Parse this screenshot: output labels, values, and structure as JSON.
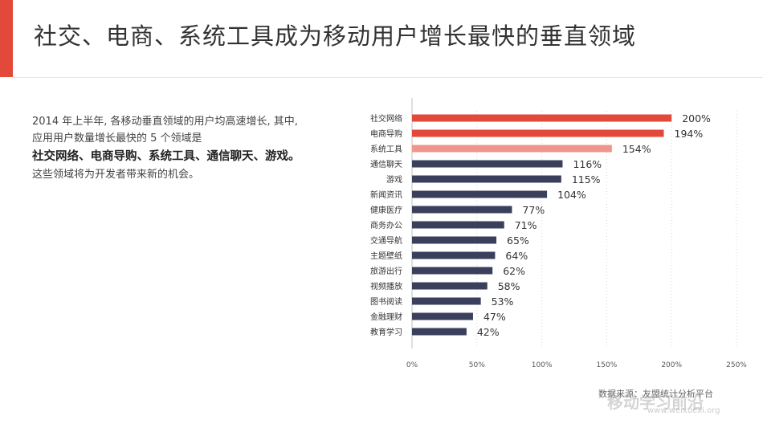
{
  "header": {
    "title": "社交、电商、系统工具成为移动用户增长最快的垂直领域"
  },
  "description": {
    "line1": "2014 年上半年, 各移动垂直领域的用户均高速增长, 其中,",
    "line2": "应用用户数量增长最快的 5 个领域是",
    "line3_bold": "社交网络、电商导购、系统工具、通信聊天、游戏。",
    "line4": "这些领域将为开发者带来新的机会。"
  },
  "footer": {
    "source": "数据来源：友盟统计分析平台",
    "watermark": "移动学习前沿",
    "watermark_url": "www.weixuexi.org"
  },
  "colors": {
    "accent": "#e2493b",
    "bar_dark": "#3a3f5c",
    "bar_red": "#e2493b",
    "bar_pink": "#f0958b"
  },
  "chart_data": {
    "type": "bar",
    "orientation": "horizontal",
    "categories": [
      "社交网络",
      "电商导购",
      "系统工具",
      "通信聊天",
      "游戏",
      "新闻资讯",
      "健康医疗",
      "商务办公",
      "交通导航",
      "主题壁纸",
      "旅游出行",
      "视频播放",
      "图书阅读",
      "金融理财",
      "教育学习"
    ],
    "values": [
      200,
      194,
      154,
      116,
      115,
      104,
      77,
      71,
      65,
      64,
      62,
      58,
      53,
      47,
      42
    ],
    "value_labels": [
      "200%",
      "194%",
      "154%",
      "116%",
      "115%",
      "104%",
      "77%",
      "71%",
      "65%",
      "64%",
      "62%",
      "58%",
      "53%",
      "47%",
      "42%"
    ],
    "bar_colors": [
      "#e2493b",
      "#e2493b",
      "#f0958b",
      "#3a3f5c",
      "#3a3f5c",
      "#3a3f5c",
      "#3a3f5c",
      "#3a3f5c",
      "#3a3f5c",
      "#3a3f5c",
      "#3a3f5c",
      "#3a3f5c",
      "#3a3f5c",
      "#3a3f5c",
      "#3a3f5c"
    ],
    "xlim": [
      0,
      250
    ],
    "xticks": [
      0,
      50,
      100,
      150,
      200,
      250
    ],
    "xtick_labels": [
      "0%",
      "50%",
      "100%",
      "150%",
      "200%",
      "250%"
    ],
    "grid": true,
    "legend": "none"
  }
}
